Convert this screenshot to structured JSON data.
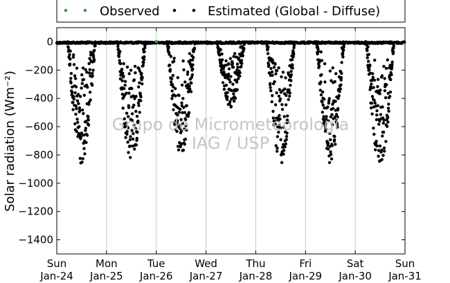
{
  "chart_data": {
    "type": "scatter",
    "title": "",
    "xlabel": "",
    "ylabel": "Solar radiation (Wm⁻²)",
    "ylim": [
      -1500,
      100
    ],
    "yticks": [
      0,
      -200,
      -400,
      -600,
      -800,
      -1000,
      -1200,
      -1400
    ],
    "xlim": [
      "2021-01-24",
      "2021-01-31"
    ],
    "xtick_labels": [
      {
        "day": "Sun",
        "date": "Jan-24"
      },
      {
        "day": "Mon",
        "date": "Jan-25"
      },
      {
        "day": "Tue",
        "date": "Jan-26"
      },
      {
        "day": "Wed",
        "date": "Jan-27"
      },
      {
        "day": "Thu",
        "date": "Jan-28"
      },
      {
        "day": "Fri",
        "date": "Jan-29"
      },
      {
        "day": "Sat",
        "date": "Jan-30"
      },
      {
        "day": "Sun",
        "date": "Jan-31"
      }
    ],
    "grid": true,
    "legend": "top",
    "series": [
      {
        "name": "Observed",
        "color": "#2ca02c",
        "x": [
          "2021-01-26 00:05"
        ],
        "y": [
          0
        ]
      },
      {
        "name": "Estimated (Global - Diffuse)",
        "color": "#000000",
        "daily": [
          {
            "date": "2021-01-24",
            "peak": -890
          },
          {
            "date": "2021-01-25",
            "peak": -860
          },
          {
            "date": "2021-01-26",
            "peak": -820
          },
          {
            "date": "2021-01-27",
            "peak": -470
          },
          {
            "date": "2021-01-28",
            "peak": -870
          },
          {
            "date": "2021-01-29",
            "peak": -860
          },
          {
            "date": "2021-01-30",
            "peak": -900
          }
        ]
      }
    ],
    "watermark": [
      "Grupo de Micrometeorologia",
      "IAG / USP"
    ]
  }
}
